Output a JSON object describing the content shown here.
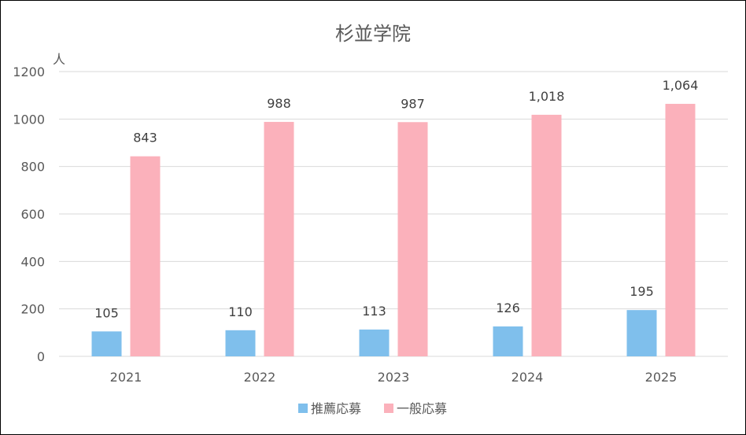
{
  "chart_data": {
    "type": "bar",
    "title": "杉並学院",
    "ylabel": "人",
    "xlabel": "",
    "categories": [
      "2021",
      "2022",
      "2023",
      "2024",
      "2025"
    ],
    "ylim": [
      0,
      1200
    ],
    "yticks": [
      0,
      200,
      400,
      600,
      800,
      1000,
      1200
    ],
    "grid": true,
    "legend_position": "bottom",
    "series": [
      {
        "name": "推薦応募",
        "color": "#7fbfec",
        "values": [
          105,
          110,
          113,
          126,
          195
        ],
        "labels": [
          "105",
          "110",
          "113",
          "126",
          "195"
        ]
      },
      {
        "name": "一般応募",
        "color": "#fbb1bb",
        "values": [
          843,
          988,
          987,
          1018,
          1064
        ],
        "labels": [
          "843",
          "988",
          "987",
          "1,018",
          "1,064"
        ]
      }
    ]
  }
}
